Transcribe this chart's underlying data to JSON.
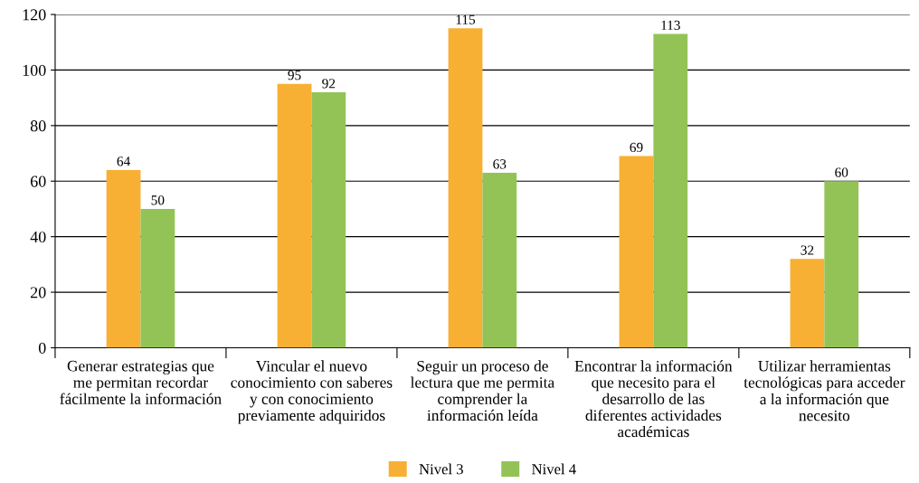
{
  "chart_data": {
    "type": "bar",
    "categories": [
      "Generar estrategias que\nme permitan recordar\nfácilmente la información",
      "Vincular el nuevo\nconocimiento con saberes\ny con conocimiento\npreviamente adquiridos",
      "Seguir un proceso de\nlectura que me permita\ncomprender la\ninformación leída",
      "Encontrar la información\nque necesito para el\ndesarrollo de las\ndiferentes actividades\nacadémicas",
      "Utilizar herramientas\ntecnológicas para acceder\na la información que\nnecesito"
    ],
    "series": [
      {
        "name": "Nivel 3",
        "color": "#f7b034",
        "values": [
          64,
          95,
          115,
          69,
          32
        ]
      },
      {
        "name": "Nivel 4",
        "color": "#93c356",
        "values": [
          50,
          92,
          63,
          113,
          60
        ]
      }
    ],
    "ylim": [
      0,
      120
    ],
    "yticks": [
      0,
      20,
      40,
      60,
      80,
      100,
      120
    ],
    "grid": "y",
    "legend": "bottom",
    "data_labels": true
  }
}
